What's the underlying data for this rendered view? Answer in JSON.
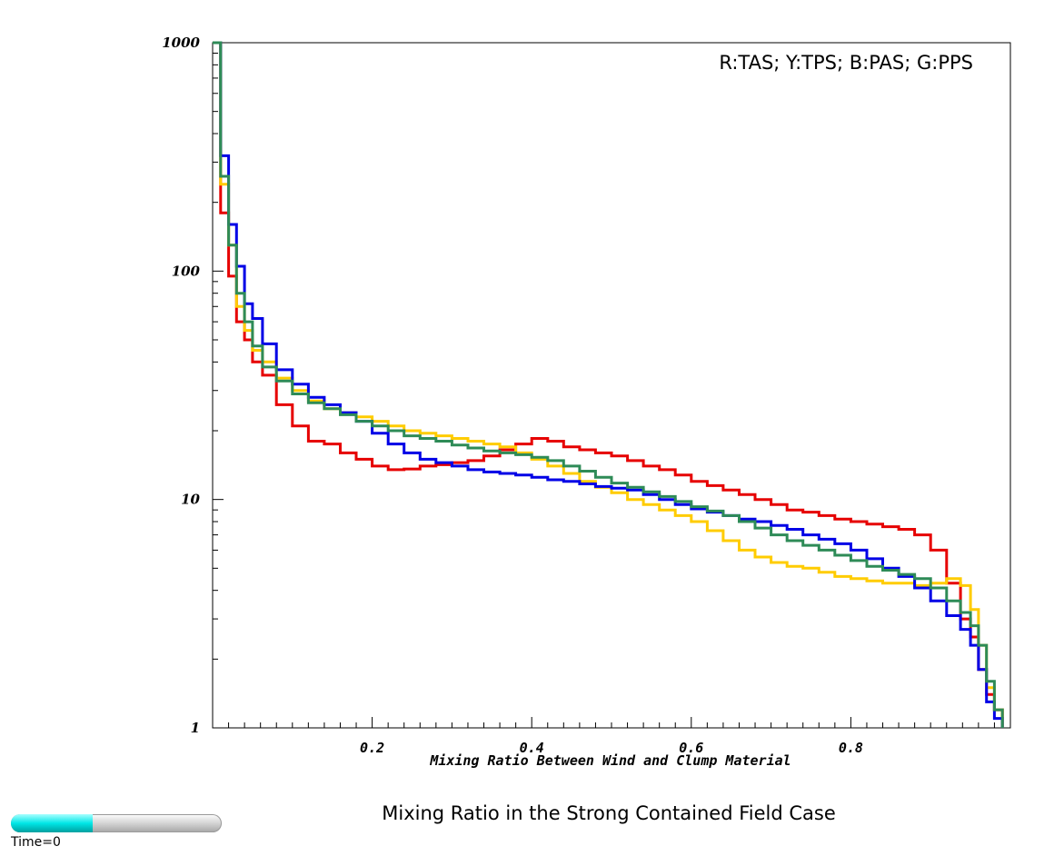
{
  "chart_data": {
    "type": "line",
    "step": true,
    "title": "Mixing Ratio in the Strong Contained Field Case",
    "annotation": "R:TAS; Y:TPS; B:PAS; G:PPS",
    "xlabel": "Mixing Ratio Between Wind and Clump Material",
    "ylabel": "",
    "xlim": [
      0.0,
      1.0
    ],
    "ylim": [
      1,
      1000
    ],
    "y_scale": "log",
    "x_ticks": [
      "0.2",
      "0.4",
      "0.6",
      "0.8"
    ],
    "y_ticks": [
      "1",
      "10",
      "100",
      "1000"
    ],
    "grid": false,
    "series": [
      {
        "code": "R",
        "color": "#e60000",
        "x": [
          0.005,
          0.015,
          0.025,
          0.035,
          0.045,
          0.055,
          0.07,
          0.09,
          0.11,
          0.13,
          0.15,
          0.17,
          0.19,
          0.21,
          0.23,
          0.25,
          0.27,
          0.29,
          0.31,
          0.33,
          0.35,
          0.37,
          0.39,
          0.41,
          0.43,
          0.45,
          0.47,
          0.49,
          0.51,
          0.53,
          0.55,
          0.57,
          0.59,
          0.61,
          0.63,
          0.65,
          0.67,
          0.69,
          0.71,
          0.73,
          0.75,
          0.77,
          0.79,
          0.81,
          0.83,
          0.85,
          0.87,
          0.89,
          0.91,
          0.93,
          0.945,
          0.955,
          0.965,
          0.975,
          0.985
        ],
        "values": [
          1000,
          180,
          95,
          60,
          50,
          40,
          35,
          26,
          21,
          18,
          17.5,
          16,
          15,
          14,
          13.5,
          13.6,
          14,
          14.2,
          14.5,
          14.8,
          15.5,
          16.5,
          17.5,
          18.5,
          18,
          17,
          16.5,
          16,
          15.5,
          14.8,
          14,
          13.5,
          12.8,
          12,
          11.5,
          11,
          10.5,
          10,
          9.5,
          9,
          8.8,
          8.5,
          8.2,
          8,
          7.8,
          7.6,
          7.4,
          7,
          6,
          4.3,
          3,
          2.5,
          1.8,
          1.4,
          1.2
        ]
      },
      {
        "code": "Y",
        "color": "#ffcc00",
        "x": [
          0.005,
          0.015,
          0.025,
          0.035,
          0.045,
          0.055,
          0.07,
          0.09,
          0.11,
          0.13,
          0.15,
          0.17,
          0.19,
          0.21,
          0.23,
          0.25,
          0.27,
          0.29,
          0.31,
          0.33,
          0.35,
          0.37,
          0.39,
          0.41,
          0.43,
          0.45,
          0.47,
          0.49,
          0.51,
          0.53,
          0.55,
          0.57,
          0.59,
          0.61,
          0.63,
          0.65,
          0.67,
          0.69,
          0.71,
          0.73,
          0.75,
          0.77,
          0.79,
          0.81,
          0.83,
          0.85,
          0.87,
          0.89,
          0.91,
          0.93,
          0.945,
          0.955,
          0.965,
          0.975,
          0.985
        ],
        "values": [
          1000,
          240,
          130,
          70,
          55,
          45,
          40,
          34,
          30,
          27,
          25,
          24,
          23,
          22,
          21,
          20,
          19.5,
          19,
          18.5,
          18,
          17.5,
          17,
          16,
          15,
          14,
          13,
          12,
          11.3,
          10.7,
          10,
          9.5,
          9,
          8.5,
          8,
          7.3,
          6.6,
          6,
          5.6,
          5.3,
          5.1,
          5,
          4.8,
          4.6,
          4.5,
          4.4,
          4.3,
          4.3,
          4.2,
          4.3,
          4.5,
          4.2,
          3.3,
          2.3,
          1.5,
          1.2
        ]
      },
      {
        "code": "B",
        "color": "#0000e6",
        "x": [
          0.005,
          0.015,
          0.025,
          0.035,
          0.045,
          0.055,
          0.07,
          0.09,
          0.11,
          0.13,
          0.15,
          0.17,
          0.19,
          0.21,
          0.23,
          0.25,
          0.27,
          0.29,
          0.31,
          0.33,
          0.35,
          0.37,
          0.39,
          0.41,
          0.43,
          0.45,
          0.47,
          0.49,
          0.51,
          0.53,
          0.55,
          0.57,
          0.59,
          0.61,
          0.63,
          0.65,
          0.67,
          0.69,
          0.71,
          0.73,
          0.75,
          0.77,
          0.79,
          0.81,
          0.83,
          0.85,
          0.87,
          0.89,
          0.91,
          0.93,
          0.945,
          0.955,
          0.965,
          0.975,
          0.985
        ],
        "values": [
          1000,
          320,
          160,
          105,
          72,
          62,
          48,
          37,
          32,
          28,
          26,
          24,
          22,
          19.5,
          17.5,
          16,
          15,
          14.5,
          14,
          13.5,
          13.2,
          13,
          12.8,
          12.5,
          12.2,
          12,
          11.7,
          11.4,
          11.2,
          11,
          10.5,
          10,
          9.5,
          9.1,
          8.8,
          8.5,
          8.2,
          8,
          7.7,
          7.4,
          7,
          6.7,
          6.4,
          6,
          5.5,
          5,
          4.6,
          4.1,
          3.6,
          3.1,
          2.7,
          2.3,
          1.8,
          1.3,
          1.1
        ]
      },
      {
        "code": "G",
        "color": "#2e8b57",
        "x": [
          0.005,
          0.015,
          0.025,
          0.035,
          0.045,
          0.055,
          0.07,
          0.09,
          0.11,
          0.13,
          0.15,
          0.17,
          0.19,
          0.21,
          0.23,
          0.25,
          0.27,
          0.29,
          0.31,
          0.33,
          0.35,
          0.37,
          0.39,
          0.41,
          0.43,
          0.45,
          0.47,
          0.49,
          0.51,
          0.53,
          0.55,
          0.57,
          0.59,
          0.61,
          0.63,
          0.65,
          0.67,
          0.69,
          0.71,
          0.73,
          0.75,
          0.77,
          0.79,
          0.81,
          0.83,
          0.85,
          0.87,
          0.89,
          0.91,
          0.93,
          0.945,
          0.955,
          0.965,
          0.975,
          0.985
        ],
        "values": [
          1000,
          260,
          130,
          80,
          60,
          47,
          38,
          33,
          29,
          26.5,
          25,
          23.5,
          22,
          21,
          20,
          19,
          18.5,
          18,
          17.3,
          16.8,
          16.3,
          16,
          15.7,
          15.3,
          14.8,
          14,
          13.3,
          12.5,
          11.8,
          11.3,
          10.8,
          10.3,
          9.8,
          9.3,
          8.9,
          8.5,
          8,
          7.5,
          7,
          6.6,
          6.3,
          6,
          5.7,
          5.4,
          5.1,
          4.9,
          4.7,
          4.5,
          4.1,
          3.6,
          3.2,
          2.8,
          2.3,
          1.6,
          1.2
        ]
      }
    ]
  },
  "time_slider": {
    "label": "Time=0",
    "fraction": 0.39
  }
}
